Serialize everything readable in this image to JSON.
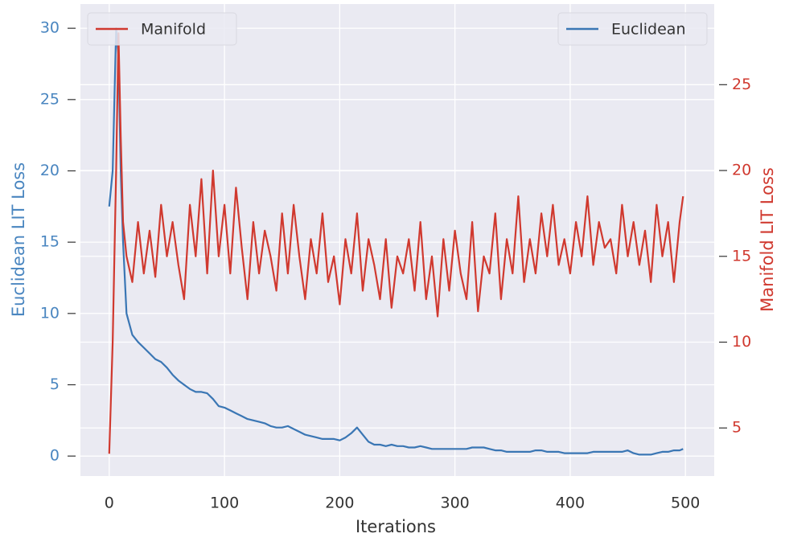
{
  "chart_data": {
    "type": "line",
    "xlabel": "Iterations",
    "ylabel": "Euclidean LIT Loss",
    "y2label": "Manifold LIT Loss",
    "x": [
      0,
      3,
      6,
      8,
      10,
      12,
      15,
      20,
      25,
      30,
      35,
      40,
      45,
      50,
      55,
      60,
      65,
      70,
      75,
      80,
      85,
      90,
      95,
      100,
      105,
      110,
      115,
      120,
      125,
      130,
      135,
      140,
      145,
      150,
      155,
      160,
      165,
      170,
      175,
      180,
      185,
      190,
      195,
      200,
      205,
      210,
      215,
      220,
      225,
      230,
      235,
      240,
      245,
      250,
      255,
      260,
      265,
      270,
      275,
      280,
      285,
      290,
      295,
      300,
      305,
      310,
      315,
      320,
      325,
      330,
      335,
      340,
      345,
      350,
      355,
      360,
      365,
      370,
      375,
      380,
      385,
      390,
      395,
      400,
      405,
      410,
      415,
      420,
      425,
      430,
      435,
      440,
      445,
      450,
      455,
      460,
      465,
      470,
      475,
      480,
      485,
      490,
      495,
      498
    ],
    "series": [
      {
        "name": "Euclidean",
        "color": "#3a76b4",
        "axis": "y",
        "legend_loc": "upper right",
        "values": [
          17.5,
          20,
          30,
          28,
          20,
          15,
          10,
          8.5,
          8,
          7.6,
          7.2,
          6.8,
          6.6,
          6.2,
          5.7,
          5.3,
          5,
          4.7,
          4.5,
          4.5,
          4.4,
          4.0,
          3.5,
          3.4,
          3.2,
          3.0,
          2.8,
          2.6,
          2.5,
          2.4,
          2.3,
          2.1,
          2.0,
          2.0,
          2.1,
          1.9,
          1.7,
          1.5,
          1.4,
          1.3,
          1.2,
          1.2,
          1.2,
          1.1,
          1.3,
          1.6,
          2.0,
          1.5,
          1.0,
          0.8,
          0.8,
          0.7,
          0.8,
          0.7,
          0.7,
          0.6,
          0.6,
          0.7,
          0.6,
          0.5,
          0.5,
          0.5,
          0.5,
          0.5,
          0.5,
          0.5,
          0.6,
          0.6,
          0.6,
          0.5,
          0.4,
          0.4,
          0.3,
          0.3,
          0.3,
          0.3,
          0.3,
          0.4,
          0.4,
          0.3,
          0.3,
          0.3,
          0.2,
          0.2,
          0.2,
          0.2,
          0.2,
          0.3,
          0.3,
          0.3,
          0.3,
          0.3,
          0.3,
          0.4,
          0.2,
          0.1,
          0.1,
          0.1,
          0.2,
          0.3,
          0.3,
          0.4,
          0.4,
          0.5
        ]
      },
      {
        "name": "Manifold",
        "color": "#d0392f",
        "axis": "y2",
        "legend_loc": "upper left",
        "values": [
          3.5,
          10,
          20,
          28,
          22,
          17,
          15,
          13.5,
          17,
          14,
          16.5,
          13.8,
          18,
          15,
          17,
          14.5,
          12.5,
          18,
          15,
          19.5,
          14,
          20,
          15,
          18,
          14,
          19,
          15.5,
          12.5,
          17,
          14,
          16.5,
          15,
          13,
          17.5,
          14,
          18,
          15,
          12.5,
          16,
          14,
          17.5,
          13.5,
          15,
          12.2,
          16,
          14,
          17.5,
          13,
          16,
          14.5,
          12.5,
          16,
          12,
          15,
          14,
          16,
          13,
          17,
          12.5,
          15,
          11.5,
          16,
          13,
          16.5,
          14,
          12.5,
          17,
          11.8,
          15,
          14,
          17.5,
          12.5,
          16,
          14,
          18.5,
          13.5,
          16,
          14,
          17.5,
          15,
          18,
          14.5,
          16,
          14,
          17,
          15,
          18.5,
          14.5,
          17,
          15.5,
          16,
          14,
          18,
          15,
          17,
          14.5,
          16.5,
          13.5,
          18,
          15,
          17,
          13.5,
          17,
          18.5
        ]
      }
    ],
    "xlim": [
      -25,
      525
    ],
    "xticks": [
      0,
      100,
      200,
      300,
      400,
      500
    ],
    "ylim": [
      -1.4,
      31.7
    ],
    "yticks": [
      0,
      5,
      10,
      15,
      20,
      25,
      30
    ],
    "y2lim": [
      2.2,
      29.7
    ],
    "y2ticks": [
      5,
      10,
      15,
      20,
      25
    ],
    "grid": true
  }
}
